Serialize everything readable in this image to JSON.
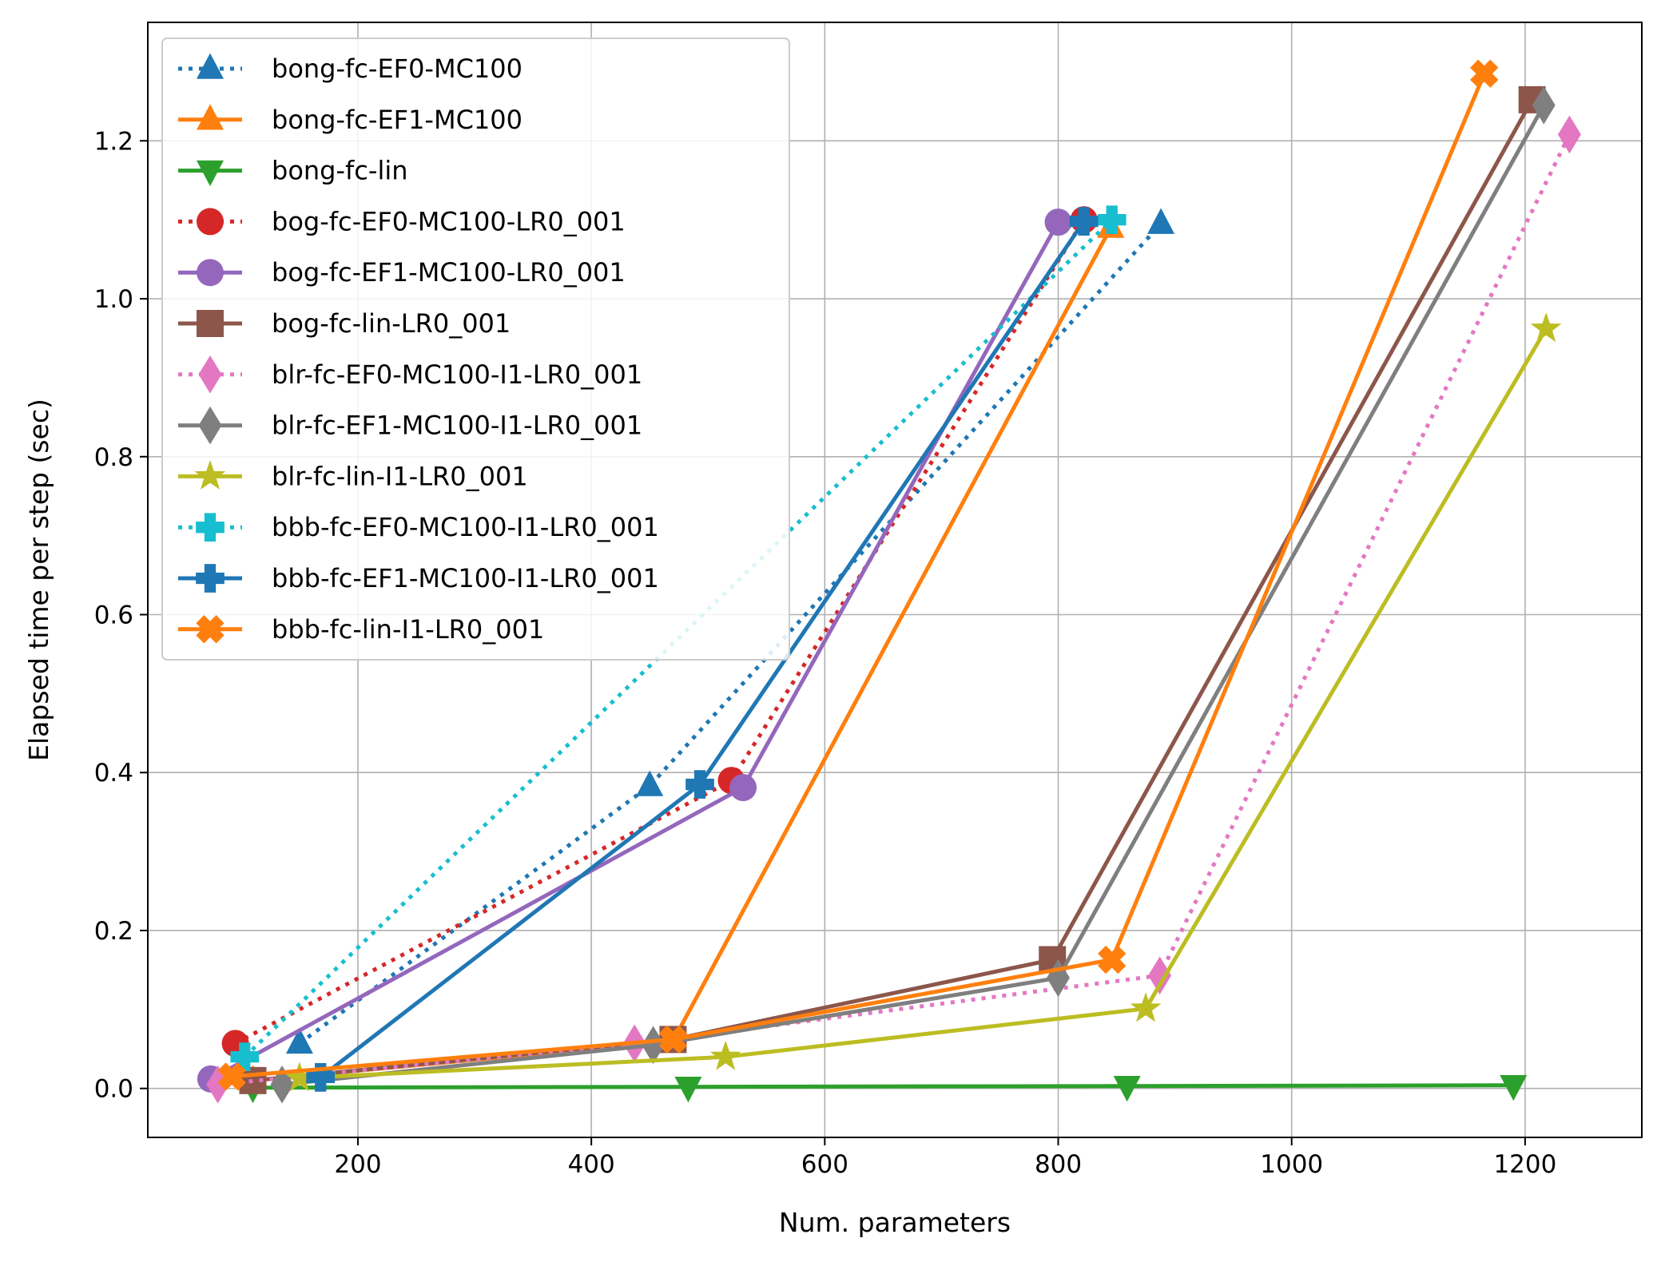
{
  "chart_data": {
    "type": "line",
    "title": "",
    "xlabel": "Num. parameters",
    "ylabel": "Elapsed time per step (sec)",
    "xlim": [
      20,
      1300
    ],
    "ylim": [
      -0.062,
      1.35
    ],
    "xticks": [
      200,
      400,
      600,
      800,
      1000,
      1200
    ],
    "yticks": [
      0.0,
      0.2,
      0.4,
      0.6,
      0.8,
      1.0,
      1.2
    ],
    "xtick_labels": [
      "200",
      "400",
      "600",
      "800",
      "1000",
      "1200"
    ],
    "ytick_labels": [
      "0.0",
      "0.2",
      "0.4",
      "0.6",
      "0.8",
      "1.0",
      "1.2"
    ],
    "grid": true,
    "legend_position": "upper-left",
    "series": [
      {
        "name": "bong-fc-EF0-MC100",
        "color": "#1f77b4",
        "linestyle": "dotted",
        "marker": "triangle-up",
        "x": [
          150,
          450,
          888
        ],
        "y": [
          0.057,
          0.383,
          1.095
        ]
      },
      {
        "name": "bong-fc-EF1-MC100",
        "color": "#ff7f0e",
        "linestyle": "solid",
        "marker": "triangle-up",
        "x": [
          110,
          470,
          845
        ],
        "y": [
          0.01,
          0.06,
          1.09
        ]
      },
      {
        "name": "bong-fc-lin",
        "color": "#2ca02c",
        "linestyle": "solid",
        "marker": "triangle-down",
        "x": [
          110,
          483,
          859,
          1190
        ],
        "y": [
          0.001,
          0.002,
          0.003,
          0.004
        ]
      },
      {
        "name": "bog-fc-EF0-MC100-LR0_001",
        "color": "#d62728",
        "linestyle": "dotted",
        "marker": "circle",
        "x": [
          95,
          520,
          822
        ],
        "y": [
          0.057,
          0.39,
          1.1
        ]
      },
      {
        "name": "bog-fc-EF1-MC100-LR0_001",
        "color": "#9467bd",
        "linestyle": "solid",
        "marker": "circle",
        "x": [
          74,
          530,
          800
        ],
        "y": [
          0.012,
          0.381,
          1.097
        ]
      },
      {
        "name": "bog-fc-lin-LR0_001",
        "color": "#8c564b",
        "linestyle": "solid",
        "marker": "square",
        "x": [
          110,
          470,
          795,
          1206
        ],
        "y": [
          0.01,
          0.062,
          0.163,
          1.252
        ]
      },
      {
        "name": "blr-fc-EF0-MC100-I1-LR0_001",
        "color": "#e377c2",
        "linestyle": "dotted",
        "marker": "diamond",
        "x": [
          80,
          437,
          887,
          1238
        ],
        "y": [
          0.005,
          0.057,
          0.143,
          1.208
        ]
      },
      {
        "name": "blr-fc-EF1-MC100-I1-LR0_001",
        "color": "#7f7f7f",
        "linestyle": "solid",
        "marker": "diamond",
        "x": [
          135,
          453,
          800,
          1216
        ],
        "y": [
          0.005,
          0.055,
          0.14,
          1.245
        ]
      },
      {
        "name": "blr-fc-lin-I1-LR0_001",
        "color": "#bcbd22",
        "linestyle": "solid",
        "marker": "star",
        "x": [
          150,
          515,
          875,
          1218
        ],
        "y": [
          0.013,
          0.04,
          0.101,
          0.962
        ]
      },
      {
        "name": "bbb-fc-EF0-MC100-I1-LR0_001",
        "color": "#17becf",
        "linestyle": "dotted",
        "marker": "plus",
        "x": [
          103,
          846
        ],
        "y": [
          0.04,
          1.1
        ]
      },
      {
        "name": "bbb-fc-EF1-MC100-I1-LR0_001",
        "color": "#1f77b4",
        "linestyle": "solid",
        "marker": "plus",
        "x": [
          168,
          493,
          822
        ],
        "y": [
          0.014,
          0.385,
          1.098
        ]
      },
      {
        "name": "bbb-fc-lin-I1-LR0_001",
        "color": "#ff7f0e",
        "linestyle": "solid",
        "marker": "x-filled",
        "x": [
          92,
          470,
          846,
          1165
        ],
        "y": [
          0.015,
          0.062,
          0.163,
          1.285
        ]
      }
    ]
  }
}
